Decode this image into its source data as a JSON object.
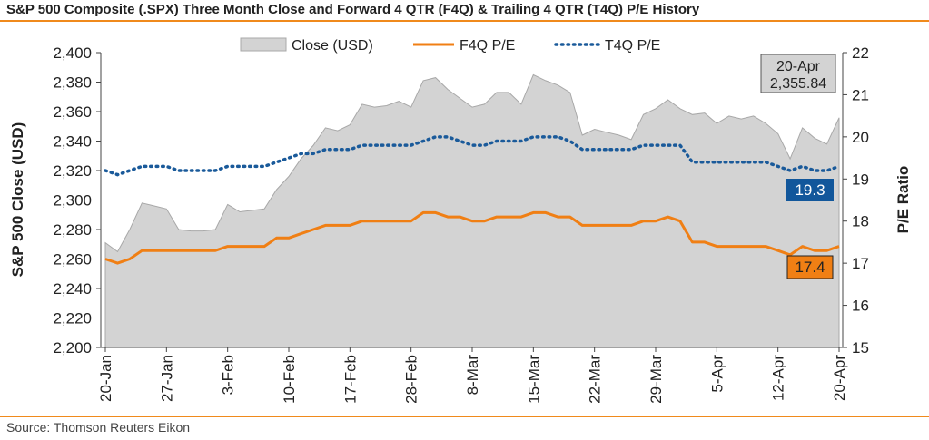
{
  "header": {
    "title": "S&P 500 Composite (.SPX) Three Month Close and Forward 4 QTR (F4Q) & Trailing 4 QTR (T4Q) P/E History"
  },
  "footer": {
    "source": "Source: Thomson Reuters Eikon"
  },
  "colors": {
    "accent_rule": "#f08a1c",
    "area_fill": "#d3d3d3",
    "area_stroke": "#a8a8a8",
    "f4q": "#f07f14",
    "t4q": "#1a5a9a",
    "t4q_label_bg": "#12579b"
  },
  "chart_data": {
    "type": "area",
    "ylabel": "S&P 500 Close (USD)",
    "y2label": "P/E Ratio",
    "ylim": [
      2200,
      2400
    ],
    "y2lim": [
      15,
      22
    ],
    "yticks": [
      "2,200",
      "2,220",
      "2,240",
      "2,260",
      "2,280",
      "2,300",
      "2,320",
      "2,340",
      "2,360",
      "2,380",
      "2,400"
    ],
    "y2ticks": [
      "15",
      "16",
      "17",
      "18",
      "19",
      "20",
      "21",
      "22"
    ],
    "xtick_labels": [
      "20-Jan",
      "27-Jan",
      "3-Feb",
      "10-Feb",
      "17-Feb",
      "28-Feb",
      "8-Mar",
      "15-Mar",
      "22-Mar",
      "29-Mar",
      "5-Apr",
      "12-Apr",
      "20-Apr"
    ],
    "xtick_index": [
      0,
      5,
      10,
      15,
      20,
      25,
      30,
      35,
      40,
      45,
      50,
      55,
      60
    ],
    "legend": {
      "placement": "top",
      "items": [
        "Close (USD)",
        "F4Q P/E",
        "T4Q P/E"
      ]
    },
    "series": [
      {
        "name": "Close (USD)",
        "axis": "left",
        "style": "area",
        "values": [
          2271,
          2265,
          2280,
          2298,
          2296,
          2294,
          2280,
          2279,
          2279,
          2280,
          2297,
          2292,
          2293,
          2294,
          2307,
          2316,
          2328,
          2337,
          2349,
          2347,
          2351,
          2365,
          2363,
          2364,
          2367,
          2363,
          2381,
          2383,
          2375,
          2369,
          2363,
          2365,
          2373,
          2373,
          2365,
          2385,
          2381,
          2378,
          2373,
          2344,
          2348,
          2346,
          2344,
          2341,
          2358,
          2362,
          2368,
          2362,
          2358,
          2359,
          2352,
          2357,
          2355,
          2357,
          2352,
          2345,
          2328,
          2349,
          2342,
          2338,
          2355.84
        ]
      },
      {
        "name": "F4Q P/E",
        "axis": "right",
        "style": "solid",
        "values": [
          17.1,
          17.0,
          17.1,
          17.3,
          17.3,
          17.3,
          17.3,
          17.3,
          17.3,
          17.3,
          17.4,
          17.4,
          17.4,
          17.4,
          17.6,
          17.6,
          17.7,
          17.8,
          17.9,
          17.9,
          17.9,
          18.0,
          18.0,
          18.0,
          18.0,
          18.0,
          18.2,
          18.2,
          18.1,
          18.1,
          18.0,
          18.0,
          18.1,
          18.1,
          18.1,
          18.2,
          18.2,
          18.1,
          18.1,
          17.9,
          17.9,
          17.9,
          17.9,
          17.9,
          18.0,
          18.0,
          18.1,
          18.0,
          17.5,
          17.5,
          17.4,
          17.4,
          17.4,
          17.4,
          17.4,
          17.3,
          17.2,
          17.4,
          17.3,
          17.3,
          17.4
        ]
      },
      {
        "name": "T4Q P/E",
        "axis": "right",
        "style": "dotted",
        "values": [
          19.2,
          19.1,
          19.2,
          19.3,
          19.3,
          19.3,
          19.2,
          19.2,
          19.2,
          19.2,
          19.3,
          19.3,
          19.3,
          19.3,
          19.4,
          19.5,
          19.6,
          19.6,
          19.7,
          19.7,
          19.7,
          19.8,
          19.8,
          19.8,
          19.8,
          19.8,
          19.9,
          20.0,
          20.0,
          19.9,
          19.8,
          19.8,
          19.9,
          19.9,
          19.9,
          20.0,
          20.0,
          20.0,
          19.9,
          19.7,
          19.7,
          19.7,
          19.7,
          19.7,
          19.8,
          19.8,
          19.8,
          19.8,
          19.4,
          19.4,
          19.4,
          19.4,
          19.4,
          19.4,
          19.4,
          19.3,
          19.2,
          19.3,
          19.2,
          19.2,
          19.3
        ]
      }
    ],
    "annotations": {
      "date_box": {
        "line1": "20-Apr",
        "line2": "2,355.84"
      },
      "t4q_last": "19.3",
      "f4q_last": "17.4"
    }
  }
}
